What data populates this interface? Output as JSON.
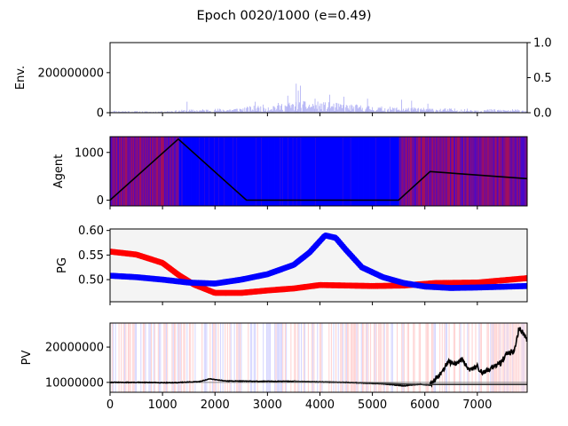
{
  "chart_data": {
    "title": "Epoch 0020/1000 (e=0.49)",
    "x_ticks": [
      "0",
      "1000",
      "2000",
      "3000",
      "4000",
      "5000",
      "6000",
      "7000"
    ],
    "xlim": [
      0,
      7950
    ],
    "panels": [
      {
        "type": "bar",
        "ylabel": "Env.",
        "ylim": [
          0,
          350000000
        ],
        "y_ticks": [
          {
            "v": 0,
            "label": "0"
          },
          {
            "v": 200000000,
            "label": "200000000"
          }
        ],
        "right_axis": {
          "ylim": [
            0,
            1.0
          ],
          "ticks": [
            {
              "v": 0,
              "label": "0.0"
            },
            {
              "v": 0.5,
              "label": "0.5"
            },
            {
              "v": 1.0,
              "label": "1.0"
            }
          ]
        },
        "bar_color": "#9c9cf2",
        "profile": [
          [
            0,
            8000000
          ],
          [
            800,
            4000000
          ],
          [
            1400,
            10000000
          ],
          [
            1800,
            12000000
          ],
          [
            2400,
            16000000
          ],
          [
            2900,
            26000000
          ],
          [
            3300,
            34000000
          ],
          [
            3700,
            38000000
          ],
          [
            4100,
            35000000
          ],
          [
            4600,
            28000000
          ],
          [
            5200,
            20000000
          ],
          [
            5800,
            17000000
          ],
          [
            6500,
            14000000
          ],
          [
            7200,
            12000000
          ],
          [
            7950,
            11000000
          ]
        ],
        "spikes": [
          [
            1460,
            55000000
          ],
          [
            3540,
            145000000
          ],
          [
            3620,
            135000000
          ],
          [
            3580,
            110000000
          ],
          [
            3380,
            85000000
          ],
          [
            4180,
            90000000
          ],
          [
            3900,
            70000000
          ],
          [
            4450,
            80000000
          ],
          [
            4900,
            70000000
          ],
          [
            5550,
            65000000
          ],
          [
            5740,
            60000000
          ],
          [
            2760,
            55000000
          ],
          [
            6050,
            45000000
          ]
        ]
      },
      {
        "type": "line",
        "ylabel": "Agent",
        "ylim": [
          -120,
          1330
        ],
        "y_ticks": [
          {
            "v": 0,
            "label": "0"
          },
          {
            "v": 1000,
            "label": "1000"
          }
        ],
        "series": [
          {
            "color": "#000000",
            "points": [
              [
                0,
                0
              ],
              [
                1300,
                1280
              ],
              [
                2600,
                0
              ],
              [
                5500,
                0
              ],
              [
                6100,
                600
              ],
              [
                7950,
                450
              ]
            ]
          }
        ],
        "background": [
          {
            "x": [
              0,
              1320
            ],
            "mode": "mixed"
          },
          {
            "x": [
              1320,
              5520
            ],
            "mode": "blue"
          },
          {
            "x": [
              5520,
              7950
            ],
            "mode": "mixed"
          }
        ],
        "bg_colors": {
          "red": "#a0105f",
          "blue": "#0000ff"
        }
      },
      {
        "type": "scatter",
        "ylabel": "PG",
        "ylim": [
          0.455,
          0.603
        ],
        "y_ticks": [
          {
            "v": 0.5,
            "label": "0.50"
          },
          {
            "v": 0.55,
            "label": "0.55"
          },
          {
            "v": 0.6,
            "label": "0.60"
          }
        ],
        "face": "#f4f4f4",
        "series": [
          {
            "color": "#ff0000",
            "points": [
              [
                0,
                0.557
              ],
              [
                500,
                0.551
              ],
              [
                1000,
                0.534
              ],
              [
                1300,
                0.51
              ],
              [
                1600,
                0.49
              ],
              [
                2000,
                0.473
              ],
              [
                2500,
                0.473
              ],
              [
                3000,
                0.478
              ],
              [
                3500,
                0.482
              ],
              [
                4000,
                0.489
              ],
              [
                4500,
                0.488
              ],
              [
                5000,
                0.487
              ],
              [
                5600,
                0.488
              ],
              [
                6200,
                0.493
              ],
              [
                7000,
                0.494
              ],
              [
                7950,
                0.503
              ]
            ]
          },
          {
            "color": "#0000ff",
            "points": [
              [
                0,
                0.508
              ],
              [
                500,
                0.505
              ],
              [
                1000,
                0.5
              ],
              [
                1500,
                0.494
              ],
              [
                2000,
                0.492
              ],
              [
                2500,
                0.5
              ],
              [
                3000,
                0.511
              ],
              [
                3500,
                0.53
              ],
              [
                3800,
                0.555
              ],
              [
                4100,
                0.59
              ],
              [
                4300,
                0.585
              ],
              [
                4500,
                0.56
              ],
              [
                4800,
                0.525
              ],
              [
                5200,
                0.505
              ],
              [
                5600,
                0.493
              ],
              [
                6000,
                0.486
              ],
              [
                6500,
                0.483
              ],
              [
                7000,
                0.484
              ],
              [
                7950,
                0.487
              ]
            ]
          }
        ]
      },
      {
        "type": "line",
        "ylabel": "PV",
        "ylim": [
          7200000,
          26800000
        ],
        "y_ticks": [
          {
            "v": 10000000,
            "label": "10000000"
          },
          {
            "v": 20000000,
            "label": "20000000"
          }
        ],
        "hline": {
          "y": 10000000,
          "color": "#888888"
        },
        "series": [
          {
            "color": "#000000",
            "points": [
              [
                0,
                10000000
              ],
              [
                500,
                10000000
              ],
              [
                1200,
                9900000
              ],
              [
                1700,
                10200000
              ],
              [
                1900,
                11000000
              ],
              [
                2200,
                10400000
              ],
              [
                2800,
                10300000
              ],
              [
                3500,
                10300000
              ],
              [
                4500,
                10000000
              ],
              [
                5200,
                9600000
              ],
              [
                5600,
                9000000
              ],
              [
                5900,
                9500000
              ],
              [
                6100,
                9200000
              ],
              [
                6200,
                11000000
              ],
              [
                6300,
                12500000
              ],
              [
                6450,
                16000000
              ],
              [
                6550,
                15000000
              ],
              [
                6700,
                16500000
              ],
              [
                6850,
                13500000
              ],
              [
                7000,
                14500000
              ],
              [
                7100,
                12500000
              ],
              [
                7300,
                14500000
              ],
              [
                7450,
                15500000
              ],
              [
                7550,
                18000000
              ],
              [
                7700,
                19000000
              ],
              [
                7800,
                25500000
              ],
              [
                7870,
                24000000
              ],
              [
                7950,
                22000000
              ]
            ]
          },
          {
            "color": "#333333",
            "points": [
              [
                3500,
                10300000
              ],
              [
                4500,
                10000000
              ],
              [
                5200,
                9700000
              ],
              [
                5600,
                9500000
              ],
              [
                6000,
                9400000
              ],
              [
                7950,
                9400000
              ]
            ]
          }
        ]
      }
    ]
  }
}
